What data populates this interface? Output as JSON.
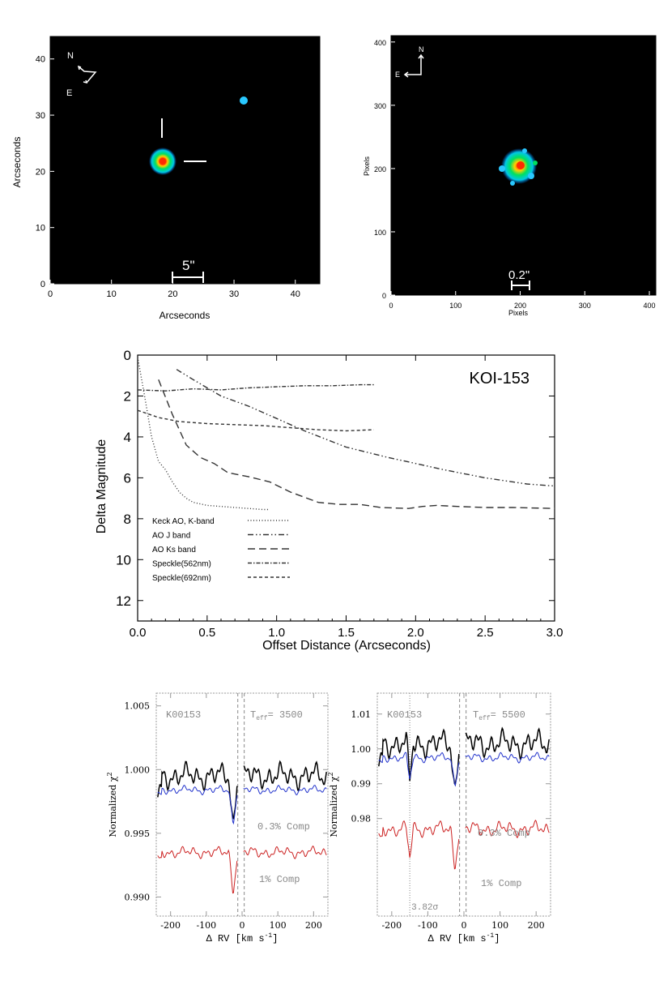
{
  "panel_a": {
    "xlabel": "Arcseconds",
    "ylabel": "Arcseconds",
    "xticks": [
      "0",
      "10",
      "20",
      "30",
      "40"
    ],
    "yticks": [
      "0",
      "10",
      "20",
      "30",
      "40"
    ],
    "compass_n": "N",
    "compass_e": "E",
    "scale_label": "5\""
  },
  "panel_b": {
    "xlabel": "Pixels",
    "ylabel": "Pixels",
    "xticks": [
      "0",
      "100",
      "200",
      "300",
      "400"
    ],
    "yticks": [
      "0",
      "100",
      "200",
      "300",
      "400"
    ],
    "compass_n": "N",
    "compass_e": "E",
    "scale_label": "0.2\""
  },
  "chart_data": [
    {
      "type": "line",
      "title": "KOI-153",
      "xlabel": "Offset Distance (Arcseconds)",
      "ylabel": "Delta Magnitude",
      "xlim": [
        0,
        3.0
      ],
      "ylim": [
        13,
        0
      ],
      "xticks": [
        "0.0",
        "0.5",
        "1.0",
        "1.5",
        "2.0",
        "2.5",
        "3.0"
      ],
      "yticks": [
        "0",
        "2",
        "4",
        "6",
        "8",
        "10",
        "12"
      ],
      "legend": [
        "Keck AO, K-band",
        "AO J band",
        "AO Ks band",
        "Speckle(562nm)",
        "Speckle(692nm)"
      ],
      "series": [
        {
          "name": "Keck AO, K-band",
          "dash": "1,2.5",
          "x": [
            0.0,
            0.05,
            0.1,
            0.15,
            0.2,
            0.25,
            0.3,
            0.35,
            0.4,
            0.5,
            0.6,
            0.7,
            0.8,
            0.9,
            0.95
          ],
          "y": [
            0.1,
            2.0,
            4.0,
            5.2,
            5.6,
            6.2,
            6.7,
            7.0,
            7.2,
            7.35,
            7.4,
            7.45,
            7.5,
            7.55,
            7.55
          ]
        },
        {
          "name": "AO J band",
          "dash": "7,3,1.5,3,1.5,3",
          "x": [
            0.28,
            0.4,
            0.5,
            0.6,
            0.8,
            1.0,
            1.2,
            1.5,
            1.8,
            2.0,
            2.2,
            2.5,
            2.8,
            3.0
          ],
          "y": [
            0.7,
            1.2,
            1.6,
            2.0,
            2.5,
            3.1,
            3.7,
            4.5,
            5.0,
            5.3,
            5.6,
            6.0,
            6.3,
            6.4
          ]
        },
        {
          "name": "AO Ks band",
          "dash": "9,5",
          "x": [
            0.15,
            0.25,
            0.35,
            0.45,
            0.55,
            0.65,
            0.8,
            0.95,
            1.1,
            1.3,
            1.45,
            1.6,
            1.75,
            1.95,
            2.05,
            2.15,
            2.3,
            2.5,
            2.7,
            3.0
          ],
          "y": [
            1.2,
            2.9,
            4.4,
            5.0,
            5.3,
            5.75,
            5.95,
            6.2,
            6.7,
            7.2,
            7.3,
            7.3,
            7.45,
            7.5,
            7.4,
            7.35,
            7.4,
            7.45,
            7.45,
            7.5
          ]
        },
        {
          "name": "Speckle(562nm)",
          "dash": "5,2,1.5,2",
          "x": [
            0.0,
            0.2,
            0.4,
            0.6,
            0.8,
            1.0,
            1.2,
            1.4,
            1.6,
            1.7
          ],
          "y": [
            1.7,
            1.75,
            1.65,
            1.7,
            1.6,
            1.55,
            1.5,
            1.5,
            1.45,
            1.45
          ]
        },
        {
          "name": "Speckle(692nm)",
          "dash": "4,3",
          "x": [
            0.0,
            0.15,
            0.3,
            0.5,
            0.7,
            0.9,
            1.1,
            1.3,
            1.5,
            1.7
          ],
          "y": [
            2.7,
            3.05,
            3.25,
            3.35,
            3.4,
            3.45,
            3.55,
            3.65,
            3.7,
            3.65
          ]
        }
      ]
    },
    {
      "type": "line",
      "star": "K00153",
      "teff_prefix": "T",
      "teff_sub": "eff",
      "teff_value": "= 3500",
      "xlabel": "Δ RV [km s",
      "xlabel_sup": "-1",
      "xlabel_end": "]",
      "ylabel": "Normalized χ",
      "ylabel_sup": "2",
      "xlim": [
        -240,
        240
      ],
      "ylim": [
        0.9885,
        1.006
      ],
      "xticks": [
        "-200",
        "-100",
        "0",
        "100",
        "200"
      ],
      "yticks": [
        "0.990",
        "0.995",
        "1.000",
        "1.005"
      ],
      "annotations": [
        "0.3% Comp",
        "1% Comp"
      ],
      "series": [
        {
          "name": "observed",
          "color": "#000000",
          "base": 0.9995,
          "amp": 0.0009,
          "dip": 0.0045
        },
        {
          "name": "0.3% Comp",
          "color": "#2233cc",
          "base": 0.9984,
          "amp": 0.0003,
          "dip": 0.003
        },
        {
          "name": "1% Comp",
          "color": "#cc2222",
          "base": 0.9935,
          "amp": 0.0004,
          "dip": 0.0035
        }
      ]
    },
    {
      "type": "line",
      "star": "K00153",
      "teff_prefix": "T",
      "teff_sub": "eff",
      "teff_value": "= 5500",
      "xlabel": "Δ RV [km s",
      "xlabel_sup": "-1",
      "xlabel_end": "]",
      "ylabel": "Normalized χ",
      "ylabel_sup": "2",
      "xlim": [
        -240,
        240
      ],
      "ylim": [
        0.952,
        1.016
      ],
      "xticks": [
        "-200",
        "-100",
        "0",
        "100",
        "200"
      ],
      "yticks": [
        "0.98",
        "0.99",
        "1.00",
        "1.01"
      ],
      "annotations": [
        "0.3% Comp",
        "1% Comp",
        "3.82σ"
      ],
      "series": [
        {
          "name": "observed",
          "color": "#000000",
          "base": 1.0015,
          "amp": 0.0035,
          "dip": 0.016
        },
        {
          "name": "0.3% Comp",
          "color": "#2233cc",
          "base": 0.9975,
          "amp": 0.0012,
          "dip": 0.009
        },
        {
          "name": "1% Comp",
          "color": "#cc2222",
          "base": 0.977,
          "amp": 0.002,
          "dip": 0.012
        }
      ]
    }
  ]
}
